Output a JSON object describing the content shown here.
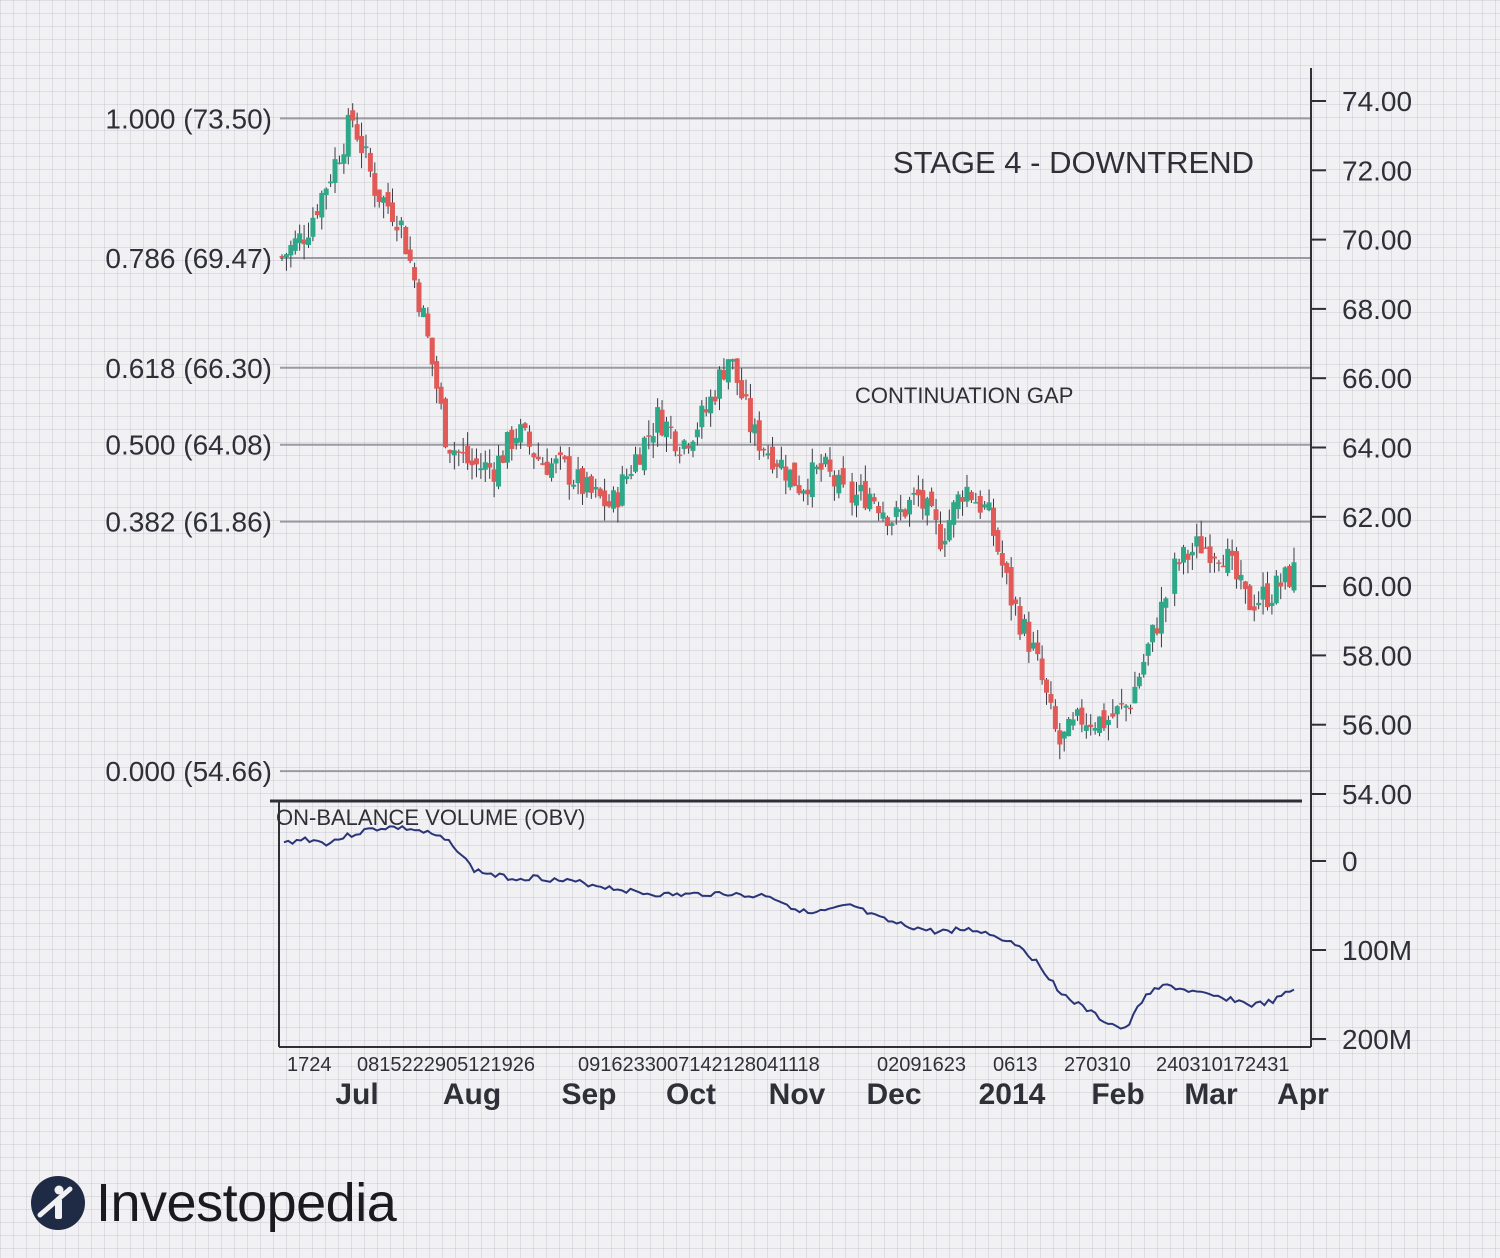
{
  "chart_data": {
    "type": "candlestick",
    "title": "STAGE 4 - DOWNTREND",
    "annotation": "CONTINUATION GAP",
    "ylim": [
      54,
      74.5
    ],
    "y_ticks": [
      "74.00",
      "72.00",
      "70.00",
      "68.00",
      "66.00",
      "64.00",
      "62.00",
      "60.00",
      "58.00",
      "56.00",
      "54.00"
    ],
    "fib_levels": [
      {
        "label": "1.000 (73.50)",
        "price": 73.5
      },
      {
        "label": "0.786 (69.47)",
        "price": 69.47
      },
      {
        "label": "0.618 (66.30)",
        "price": 66.3
      },
      {
        "label": "0.500 (64.08)",
        "price": 64.08
      },
      {
        "label": "0.382 (61.86)",
        "price": 61.86
      },
      {
        "label": "0.000 (54.66)",
        "price": 54.66
      }
    ],
    "months": [
      "Jul",
      "Aug",
      "Sep",
      "Oct",
      "Nov",
      "Dec",
      "2014",
      "Feb",
      "Mar",
      "Apr"
    ],
    "day_labels": [
      "1724",
      "0815222905121926",
      "0916233007142128041118",
      "02091623",
      "0613",
      "270310",
      "240310172431"
    ],
    "close_series": [
      69.5,
      70.2,
      71.8,
      73.5,
      71.4,
      70.6,
      67.8,
      64.2,
      63.5,
      63.4,
      64.5,
      63.6,
      63.4,
      62.7,
      62.3,
      63.7,
      64.9,
      64.1,
      65.0,
      66.7,
      64.4,
      63.7,
      62.9,
      63.4,
      62.5,
      62.7,
      61.9,
      62.6,
      61.4,
      62.9,
      62.1,
      59.6,
      58.0,
      55.4,
      56.2,
      56.1,
      56.6,
      58.6,
      60.6,
      61.2,
      61.0,
      59.5,
      59.8,
      60.4
    ],
    "obv": {
      "label": "ON-BALANCE VOLUME (OBV)",
      "y_ticks": [
        "0",
        "100M",
        "200M"
      ],
      "ylim": [
        -30,
        200
      ],
      "values": [
        -20,
        -25,
        -20,
        -28,
        -35,
        -38,
        -36,
        -30,
        -20,
        10,
        16,
        20,
        18,
        22,
        24,
        28,
        32,
        36,
        38,
        38,
        37,
        36,
        40,
        38,
        50,
        60,
        55,
        50,
        62,
        70,
        75,
        80,
        77,
        78,
        86,
        95,
        120,
        150,
        165,
        180,
        190,
        148,
        140,
        146,
        152,
        155,
        162,
        158,
        144
      ]
    },
    "colors": {
      "up": "#2fa889",
      "down": "#e25a57",
      "line": "#2a3577",
      "grid": "#9a9aa2"
    }
  },
  "brand": {
    "name": "Investopedia"
  }
}
